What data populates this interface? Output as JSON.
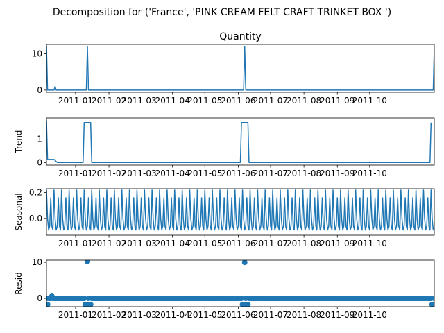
{
  "figure_title": "Decomposition for ('France', 'PINK CREAM FELT CRAFT TRINKET BOX ')",
  "chart_data": [
    {
      "type": "line",
      "panel": "observed",
      "title": "Quantity",
      "ylabel": "",
      "ylim": [
        -0.6,
        12.6
      ],
      "yticks": [
        0,
        10
      ],
      "color": "#1f77b4",
      "xlim": [
        "2010-12-05",
        "2011-11-30"
      ],
      "x_tick_labels": [
        "2011-01",
        "2011-02",
        "2011-03",
        "2011-04",
        "2011-05",
        "2011-06",
        "2011-07",
        "2011-08",
        "2011-09",
        "2011-10"
      ],
      "points": [
        [
          "2010-12-05",
          12
        ],
        [
          "2010-12-06",
          0
        ],
        [
          "2010-12-12",
          0
        ],
        [
          "2010-12-13",
          1
        ],
        [
          "2010-12-14",
          0
        ],
        [
          "2011-01-11",
          0
        ],
        [
          "2011-01-12",
          12
        ],
        [
          "2011-01-13",
          0
        ],
        [
          "2011-06-06",
          0
        ],
        [
          "2011-06-07",
          12
        ],
        [
          "2011-06-08",
          0
        ],
        [
          "2011-11-29",
          0
        ],
        [
          "2011-11-30",
          12
        ]
      ]
    },
    {
      "type": "line",
      "panel": "trend",
      "ylabel": "Trend",
      "ylim": [
        -0.1,
        1.9
      ],
      "yticks": [
        0,
        1
      ],
      "color": "#1f77b4",
      "xlim": [
        "2010-12-05",
        "2011-11-30"
      ],
      "x_tick_labels": [
        "2011-01",
        "2011-02",
        "2011-03",
        "2011-04",
        "2011-05",
        "2011-06",
        "2011-07",
        "2011-08",
        "2011-09",
        "2011-10"
      ],
      "points": [
        [
          "2010-12-05",
          1.8
        ],
        [
          "2010-12-06",
          0.14
        ],
        [
          "2010-12-12",
          0.14
        ],
        [
          "2010-12-15",
          0.01
        ],
        [
          "2011-01-08",
          0.01
        ],
        [
          "2011-01-09",
          1.7
        ],
        [
          "2011-01-15",
          1.7
        ],
        [
          "2011-01-16",
          0.01
        ],
        [
          "2011-06-03",
          0.01
        ],
        [
          "2011-06-04",
          1.7
        ],
        [
          "2011-06-10",
          1.7
        ],
        [
          "2011-06-11",
          0.01
        ],
        [
          "2011-11-26",
          0.01
        ],
        [
          "2011-11-27",
          1.7
        ]
      ]
    },
    {
      "type": "line",
      "panel": "seasonal",
      "ylabel": "Seasonal",
      "ylim": [
        -0.13,
        0.23
      ],
      "yticks": [
        0.0,
        0.2
      ],
      "color": "#1f77b4",
      "xlim": [
        "2010-12-05",
        "2011-11-30"
      ],
      "x_tick_labels": [
        "2011-01",
        "2011-02",
        "2011-03",
        "2011-04",
        "2011-05",
        "2011-06",
        "2011-07",
        "2011-08",
        "2011-09",
        "2011-10"
      ],
      "period_days": 7,
      "pattern": [
        0.22,
        0.0,
        -0.09,
        -0.06,
        0.16,
        -0.06,
        -0.09
      ]
    },
    {
      "type": "scatter",
      "panel": "resid",
      "ylabel": "Resid",
      "ylim": [
        -2.3,
        10.6
      ],
      "yticks": [
        0,
        10
      ],
      "color": "#1f77b4",
      "xlim": [
        "2010-12-05",
        "2011-11-30"
      ],
      "x_tick_labels": [
        "2011-01",
        "2011-02",
        "2011-03",
        "2011-04",
        "2011-05",
        "2011-06",
        "2011-07",
        "2011-08",
        "2011-09",
        "2011-10"
      ],
      "baseline": 0,
      "points": [
        [
          "2010-12-06",
          -1.7
        ],
        [
          "2010-12-10",
          0.6
        ],
        [
          "2011-01-10",
          -1.7
        ],
        [
          "2011-01-11",
          -1.7
        ],
        [
          "2011-01-12",
          10.2
        ],
        [
          "2011-01-14",
          -1.7
        ],
        [
          "2011-01-15",
          -1.7
        ],
        [
          "2011-06-05",
          -1.7
        ],
        [
          "2011-06-06",
          -1.7
        ],
        [
          "2011-06-07",
          10.0
        ],
        [
          "2011-06-09",
          -1.7
        ],
        [
          "2011-06-10",
          -1.7
        ],
        [
          "2011-11-28",
          -1.7
        ],
        [
          "2011-11-29",
          -1.7
        ]
      ]
    }
  ]
}
